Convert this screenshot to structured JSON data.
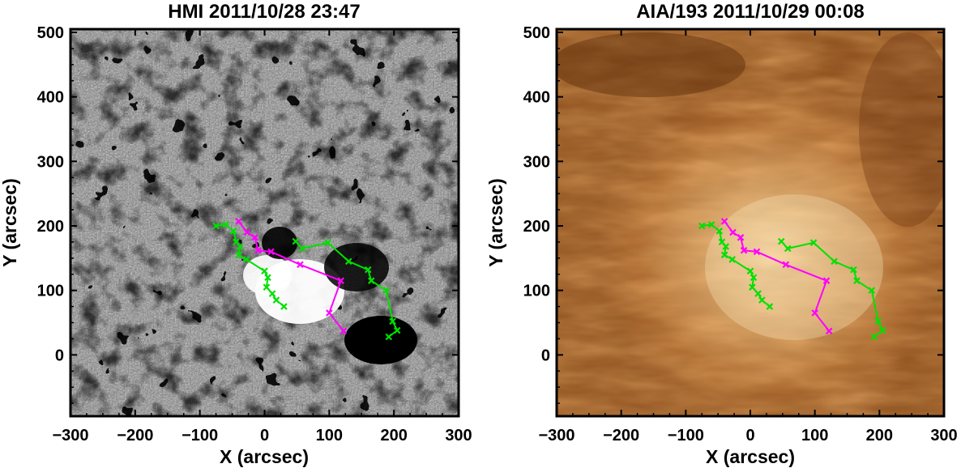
{
  "panels": [
    {
      "id": "hmi",
      "title": "HMI 2011/10/28 23:47",
      "xlabel": "X (arcsec)",
      "ylabel": "Y (arcsec)",
      "xlim": [
        -300,
        300
      ],
      "ylim": [
        -95,
        505
      ],
      "xticks": [
        -300,
        -200,
        -100,
        0,
        100,
        200,
        300
      ],
      "yticks": [
        0,
        100,
        200,
        300,
        400,
        500
      ],
      "image_type": "magnetogram-grayscale"
    },
    {
      "id": "aia",
      "title": "AIA/193 2011/10/29 00:08",
      "xlabel": "X (arcsec)",
      "ylabel": "Y (arcsec)",
      "xlim": [
        -300,
        300
      ],
      "ylim": [
        -95,
        505
      ],
      "xticks": [
        -300,
        -200,
        -100,
        0,
        100,
        200,
        300
      ],
      "yticks": [
        0,
        100,
        200,
        300,
        400,
        500
      ],
      "image_type": "euv-193-brown"
    }
  ],
  "tracks": {
    "magenta": {
      "color": "#ff00ff",
      "points": [
        [
          -40,
          207
        ],
        [
          -27,
          190
        ],
        [
          -15,
          182
        ],
        [
          -10,
          162
        ],
        [
          10,
          160
        ],
        [
          55,
          140
        ],
        [
          118,
          115
        ],
        [
          100,
          65
        ],
        [
          122,
          37
        ]
      ]
    },
    "green": {
      "color": "#00e000",
      "points": [
        [
          -75,
          200
        ],
        [
          -60,
          202
        ],
        [
          -48,
          192
        ],
        [
          -44,
          175
        ],
        [
          -38,
          168
        ],
        [
          -40,
          155
        ],
        [
          -28,
          148
        ],
        [
          0,
          130
        ],
        [
          5,
          120
        ],
        [
          3,
          105
        ],
        [
          12,
          95
        ],
        [
          18,
          85
        ],
        [
          30,
          75
        ]
      ],
      "points2": [
        [
          48,
          176
        ],
        [
          58,
          165
        ],
        [
          98,
          174
        ],
        [
          130,
          145
        ],
        [
          160,
          132
        ],
        [
          165,
          115
        ],
        [
          188,
          100
        ],
        [
          198,
          52
        ],
        [
          205,
          38
        ],
        [
          192,
          28
        ]
      ]
    }
  }
}
